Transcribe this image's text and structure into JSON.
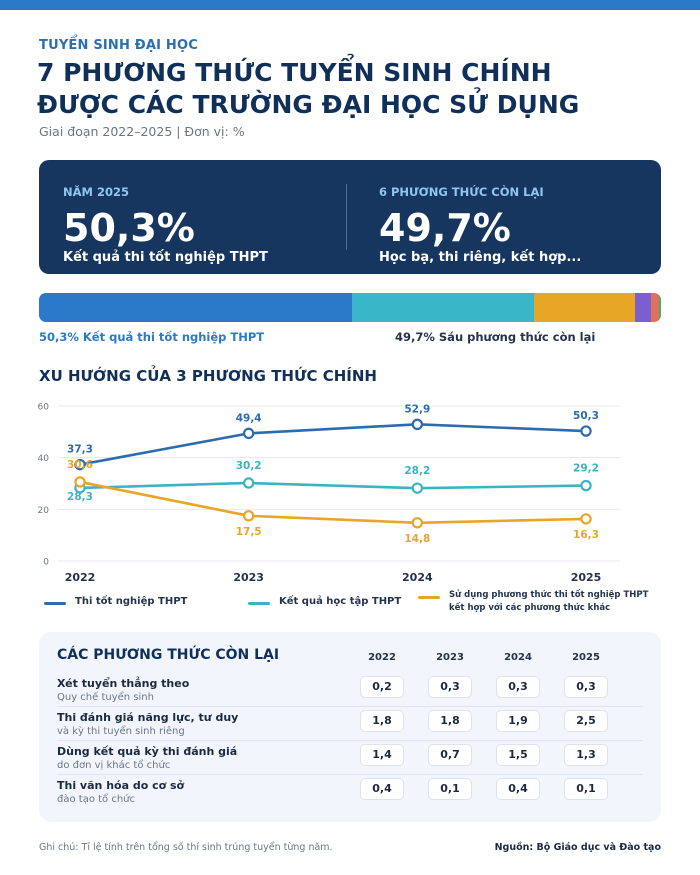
{
  "header": {
    "kicker": "TUYỂN SINH ĐẠI HỌC",
    "title_line1": "7 PHƯƠNG THỨC TUYỂN SINH CHÍNH",
    "title_line2": "ĐƯỢC CÁC TRƯỜNG ĐẠI HỌC SỬ DỤNG",
    "subtitle": "Giai đoạn 2022–2025 | Đơn vị: %"
  },
  "hero": {
    "left": {
      "label": "NĂM 2025",
      "value": "50,3%",
      "desc": "Kết quả thi tốt nghiệp THPT"
    },
    "right": {
      "label": "6 PHƯƠNG THỨC CÒN LẠI",
      "value": "49,7%",
      "desc": "Học bạ, thi riêng, kết hợp..."
    }
  },
  "stacked_bar": {
    "segments": [
      {
        "value": 50.3,
        "color": "#2b79c9"
      },
      {
        "value": 29.2,
        "color": "#39b6c8"
      },
      {
        "value": 16.3,
        "color": "#e8a626"
      },
      {
        "value": 2.5,
        "color": "#7b5fcf"
      },
      {
        "value": 1.3,
        "color": "#e0705b"
      },
      {
        "value": 0.3,
        "color": "#4aa872"
      }
    ],
    "caption_left": "50,3% Kết quả thi tốt nghiệp THPT",
    "caption_right": "49,7% Sáu phương thức còn lại"
  },
  "trend_title": "XU HƯỚNG CỦA 3 PHƯƠNG THỨC CHÍNH",
  "chart_data": {
    "type": "line",
    "x": [
      "2022",
      "2023",
      "2024",
      "2025"
    ],
    "ylim": [
      0,
      60
    ],
    "yticks": [
      0,
      20,
      40,
      60
    ],
    "grid": true,
    "legend_position": "bottom",
    "series": [
      {
        "name": "Thi tốt nghiệp THPT",
        "values": [
          37.3,
          49.4,
          52.9,
          50.3
        ],
        "labels": [
          "37,3",
          "49,4",
          "52,9",
          "50,3"
        ],
        "color": "#2b6cb0"
      },
      {
        "name": "Kết quả học tập THPT",
        "values": [
          28.3,
          30.2,
          28.2,
          29.2
        ],
        "labels": [
          "28,3",
          "30,2",
          "28,2",
          "29,2"
        ],
        "color": "#3bb3c3"
      },
      {
        "name": "Sử dụng phương thức thi tốt nghiệp THPT kết hợp với các phương thức khác",
        "values": [
          30.6,
          17.5,
          14.8,
          16.3
        ],
        "labels": [
          "30,6",
          "17,5",
          "14,8",
          "16,3"
        ],
        "color": "#e8a626"
      }
    ]
  },
  "legend_lines": {
    "s3_line1": "Sử dụng phương thức thi tốt nghiệp THPT",
    "s3_line2": "kết hợp với các phương thức khác"
  },
  "other_methods": {
    "title": "CÁC PHƯƠNG THỨC CÒN LẠI",
    "years": [
      "2022",
      "2023",
      "2024",
      "2025"
    ],
    "rows": [
      {
        "title": "Xét tuyển thẳng theo",
        "subtitle": "Quy chế tuyển sinh",
        "values": [
          "0,2",
          "0,3",
          "0,3",
          "0,3"
        ]
      },
      {
        "title": "Thi đánh giá năng lực, tư duy",
        "subtitle": "và kỳ thi tuyển sinh riêng",
        "values": [
          "1,8",
          "1,8",
          "1,9",
          "2,5"
        ]
      },
      {
        "title": "Dùng kết quả kỳ thi đánh giá",
        "subtitle": "do đơn vị khác tổ chức",
        "values": [
          "1,4",
          "0,7",
          "1,5",
          "1,3"
        ]
      },
      {
        "title": "Thi văn hóa do cơ sở",
        "subtitle": "đào tạo tổ chức",
        "values": [
          "0,4",
          "0,1",
          "0,4",
          "0,1"
        ]
      }
    ]
  },
  "footer": {
    "note": "Ghi chú: Tỉ lệ tính trên tổng số thí sinh trúng tuyển từng năm.",
    "source": "Nguồn: Bộ Giáo dục và Đào tạo"
  }
}
